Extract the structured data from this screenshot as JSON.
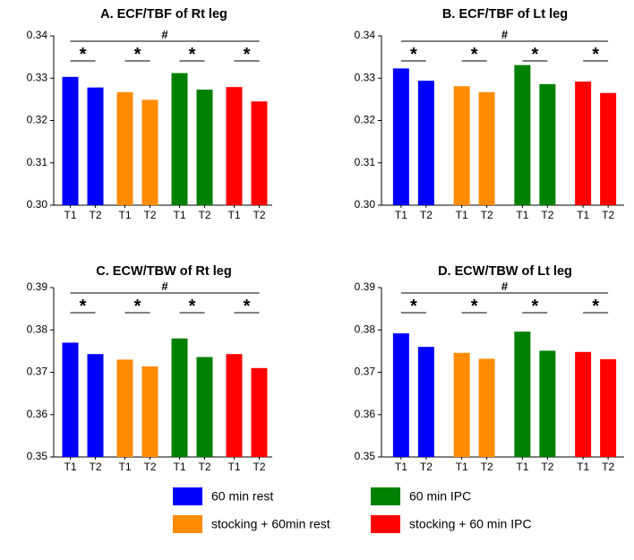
{
  "colors": {
    "rest": "#0000ff",
    "stocking_rest": "#ff8c00",
    "ipc": "#008000",
    "stocking_ipc": "#ff0000"
  },
  "legend": [
    {
      "name": "60 min rest",
      "color_key": "rest"
    },
    {
      "name": "60 min IPC",
      "color_key": "ipc"
    },
    {
      "name": "stocking + 60min rest",
      "color_key": "stocking_rest"
    },
    {
      "name": "stocking + 60 min IPC",
      "color_key": "stocking_ipc"
    }
  ],
  "chart_data": [
    {
      "type": "bar",
      "title": "A. ECF/TBF of Rt leg",
      "ylim": [
        0.3,
        0.34
      ],
      "yticks": [
        "0.30",
        "0.31",
        "0.32",
        "0.33",
        "0.34"
      ],
      "categories": [
        "T1",
        "T2"
      ],
      "groups": [
        {
          "color_key": "rest",
          "values": [
            0.3303,
            0.3278
          ],
          "marker": "*"
        },
        {
          "color_key": "stocking_rest",
          "values": [
            0.3267,
            0.3249
          ],
          "marker": "*"
        },
        {
          "color_key": "ipc",
          "values": [
            0.3312,
            0.3273
          ],
          "marker": "*"
        },
        {
          "color_key": "stocking_ipc",
          "values": [
            0.3279,
            0.3245
          ],
          "marker": "*"
        }
      ],
      "overall_marker": "#"
    },
    {
      "type": "bar",
      "title": "B. ECF/TBF of Lt leg",
      "ylim": [
        0.3,
        0.34
      ],
      "yticks": [
        "0.30",
        "0.31",
        "0.32",
        "0.33",
        "0.34"
      ],
      "categories": [
        "T1",
        "T2"
      ],
      "groups": [
        {
          "color_key": "rest",
          "values": [
            0.3323,
            0.3294
          ],
          "marker": "*"
        },
        {
          "color_key": "stocking_rest",
          "values": [
            0.3281,
            0.3267
          ],
          "marker": "*"
        },
        {
          "color_key": "ipc",
          "values": [
            0.3331,
            0.3286
          ],
          "marker": "*"
        },
        {
          "color_key": "stocking_ipc",
          "values": [
            0.3292,
            0.3265
          ],
          "marker": "*"
        }
      ],
      "overall_marker": "#"
    },
    {
      "type": "bar",
      "title": "C. ECW/TBW of Rt leg",
      "ylim": [
        0.35,
        0.39
      ],
      "yticks": [
        "0.35",
        "0.36",
        "0.37",
        "0.38",
        "0.39"
      ],
      "categories": [
        "T1",
        "T2"
      ],
      "groups": [
        {
          "color_key": "rest",
          "values": [
            0.377,
            0.3743
          ],
          "marker": "*"
        },
        {
          "color_key": "stocking_rest",
          "values": [
            0.373,
            0.3714
          ],
          "marker": "*"
        },
        {
          "color_key": "ipc",
          "values": [
            0.378,
            0.3736
          ],
          "marker": "*"
        },
        {
          "color_key": "stocking_ipc",
          "values": [
            0.3743,
            0.371
          ],
          "marker": "*"
        }
      ],
      "overall_marker": "#"
    },
    {
      "type": "bar",
      "title": "D. ECW/TBW of Lt leg",
      "ylim": [
        0.35,
        0.39
      ],
      "yticks": [
        "0.35",
        "0.36",
        "0.37",
        "0.38",
        "0.39"
      ],
      "categories": [
        "T1",
        "T2"
      ],
      "groups": [
        {
          "color_key": "rest",
          "values": [
            0.3792,
            0.376
          ],
          "marker": "*"
        },
        {
          "color_key": "stocking_rest",
          "values": [
            0.3746,
            0.3732
          ],
          "marker": "*"
        },
        {
          "color_key": "ipc",
          "values": [
            0.3796,
            0.3751
          ],
          "marker": "*"
        },
        {
          "color_key": "stocking_ipc",
          "values": [
            0.3748,
            0.3731
          ],
          "marker": "*"
        }
      ],
      "overall_marker": "#"
    }
  ]
}
